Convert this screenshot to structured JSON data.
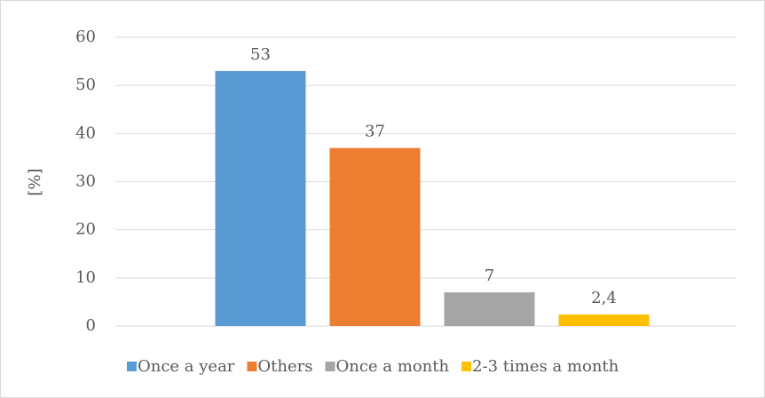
{
  "chart_data": {
    "type": "bar",
    "ylabel": "[%]",
    "categories": [
      null
    ],
    "series": [
      {
        "name": "Once a year",
        "color": "#5b9bd5",
        "values": [
          53
        ]
      },
      {
        "name": "Others",
        "color": "#ed7d31",
        "values": [
          37
        ]
      },
      {
        "name": "Once a month",
        "color": "#a5a5a5",
        "values": [
          7
        ]
      },
      {
        "name": "2-3 times a month",
        "color": "#ffc000",
        "values": [
          2.4
        ],
        "value_labels": [
          "2,4"
        ]
      }
    ],
    "ylim": [
      0,
      60
    ],
    "yticks": [
      0,
      10,
      20,
      30,
      40,
      50,
      60
    ],
    "grid": true,
    "legend": "bottom"
  }
}
